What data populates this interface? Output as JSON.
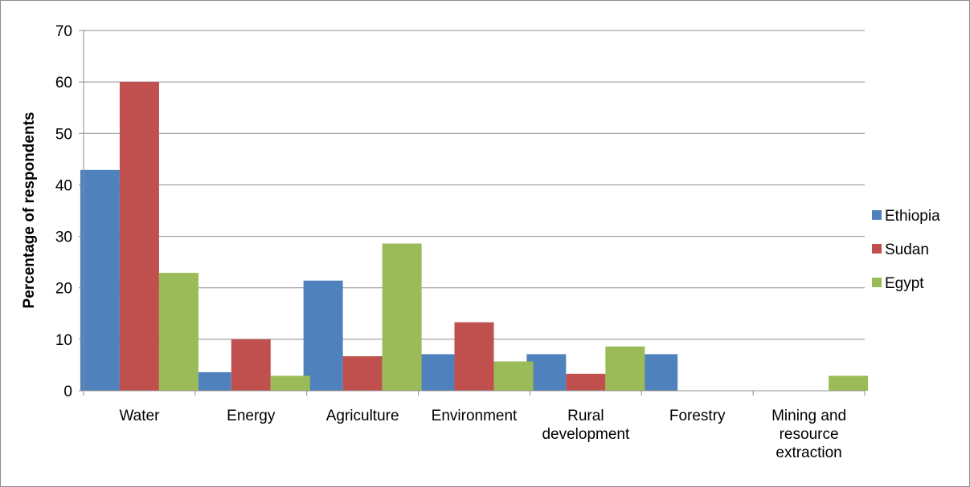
{
  "chart_data": {
    "type": "bar",
    "title": "",
    "xlabel": "",
    "ylabel": "Percentage of respondents",
    "ylim": [
      0,
      70
    ],
    "yticks": [
      0,
      10,
      20,
      30,
      40,
      50,
      60,
      70
    ],
    "grid": true,
    "legend_position": "right",
    "categories": [
      [
        "Water"
      ],
      [
        "Energy"
      ],
      [
        "Agriculture"
      ],
      [
        "Environment"
      ],
      [
        "Rural",
        "development"
      ],
      [
        "Forestry"
      ],
      [
        "Mining and",
        "resource",
        "extraction"
      ]
    ],
    "series": [
      {
        "name": "Ethiopia",
        "color": "#4f81bd",
        "values": [
          42.9,
          3.6,
          21.4,
          7.1,
          7.1,
          7.1,
          0
        ]
      },
      {
        "name": "Sudan",
        "color": "#c0504d",
        "values": [
          60,
          10,
          6.7,
          13.3,
          3.3,
          0,
          0
        ]
      },
      {
        "name": "Egypt",
        "color": "#9bbb59",
        "values": [
          22.9,
          2.9,
          28.6,
          5.7,
          8.6,
          0,
          2.9
        ]
      }
    ]
  }
}
